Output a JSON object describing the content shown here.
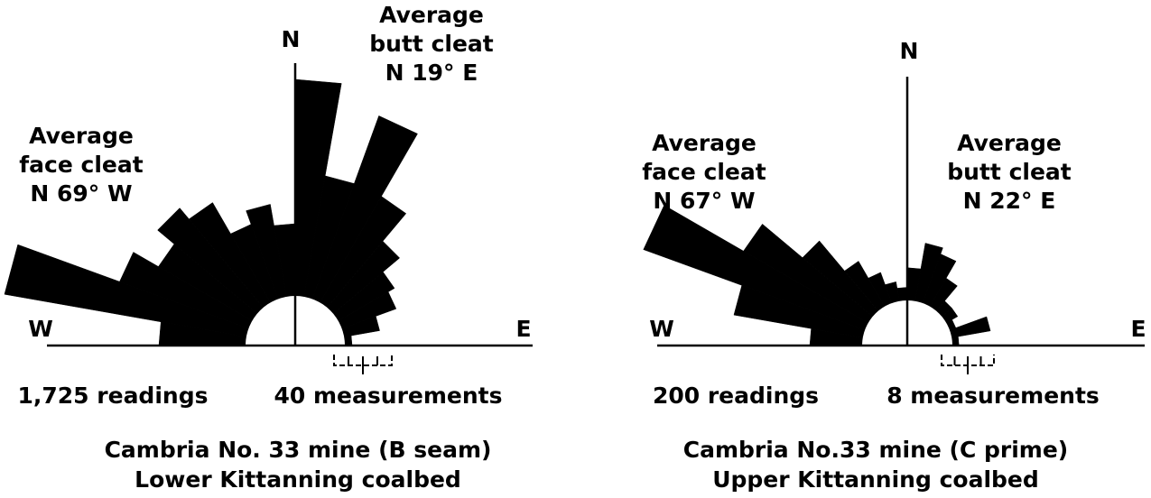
{
  "chart_data": [
    {
      "type": "rose",
      "north_label": "N",
      "west_label": "W",
      "east_label": "E",
      "face_annotation": [
        "Average",
        "face cleat",
        "N 69° W"
      ],
      "butt_annotation": [
        "Average",
        "butt cleat",
        "N 19° E"
      ],
      "readings_label": "1,725 readings",
      "scale": 40,
      "scale_label": "40 measurements",
      "caption": [
        "Cambria No. 33 mine (B seam)",
        "Lower Kittanning coalbed"
      ],
      "color": "#000000",
      "x": [
        -85,
        -75,
        -65,
        -55,
        -45,
        -35,
        -25,
        -15,
        -5,
        5,
        15,
        25,
        35,
        45,
        55,
        65,
        75,
        85
      ],
      "values": [
        60,
        170,
        95,
        75,
        90,
        80,
        55,
        65,
        50,
        150,
        85,
        135,
        85,
        60,
        45,
        40,
        25,
        5
      ]
    },
    {
      "type": "rose",
      "north_label": "N",
      "west_label": "W",
      "east_label": "E",
      "face_annotation": [
        "Average",
        "face cleat",
        "N 67° W"
      ],
      "butt_annotation": [
        "Average",
        "butt cleat",
        "N 22° E"
      ],
      "readings_label": "200 readings",
      "scale": 8,
      "scale_label": "8 measurements",
      "caption": [
        "Cambria No.33 mine (C prime)",
        "Upper Kittanning coalbed"
      ],
      "color": "#000000",
      "x": [
        -85,
        -75,
        -65,
        -55,
        -45,
        -35,
        -25,
        -15,
        -5,
        5,
        15,
        25,
        35,
        45,
        55,
        65,
        75,
        85
      ],
      "values": [
        8,
        20,
        36,
        22,
        14,
        8,
        5,
        3,
        2,
        5,
        9,
        8,
        5,
        2,
        2,
        1,
        6,
        1
      ]
    }
  ]
}
